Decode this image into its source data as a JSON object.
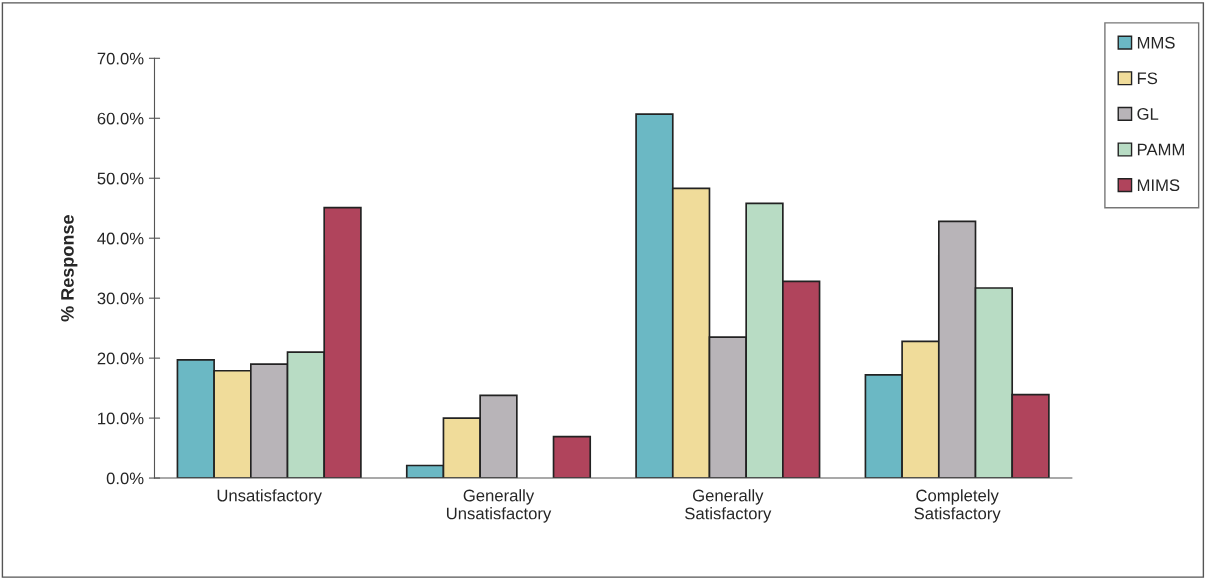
{
  "chart_data": {
    "type": "bar",
    "ylabel": "% Response",
    "categories": [
      "Unsatisfactory",
      "Generally\nUnsatisfactory",
      "Generally\nSatisfactory",
      "Completely\nSatisfactory"
    ],
    "series": [
      {
        "name": "MMS",
        "color": "#6bb8c4",
        "values": [
          19.7,
          2.1,
          60.7,
          17.2
        ]
      },
      {
        "name": "FS",
        "color": "#f0dc9a",
        "values": [
          17.9,
          10.0,
          48.3,
          22.8
        ]
      },
      {
        "name": "GL",
        "color": "#b8b4b8",
        "values": [
          19.0,
          13.8,
          23.5,
          42.8
        ]
      },
      {
        "name": "PAMM",
        "color": "#b8dcc4",
        "values": [
          21.0,
          null,
          45.8,
          31.7
        ]
      },
      {
        "name": "MIMS",
        "color": "#b0445c",
        "values": [
          45.1,
          6.9,
          32.8,
          13.9
        ]
      }
    ],
    "ylim": [
      0,
      70
    ],
    "yticks": [
      {
        "value": 0,
        "label": "0.0%"
      },
      {
        "value": 10,
        "label": "10.0%"
      },
      {
        "value": 20,
        "label": "20.0%"
      },
      {
        "value": 30,
        "label": "30.0%"
      },
      {
        "value": 40,
        "label": "40.0%"
      },
      {
        "value": 50,
        "label": "50.0%"
      },
      {
        "value": 60,
        "label": "60.0%"
      },
      {
        "value": 70,
        "label": "70.0%"
      }
    ],
    "grid": false,
    "legend": "top right"
  }
}
